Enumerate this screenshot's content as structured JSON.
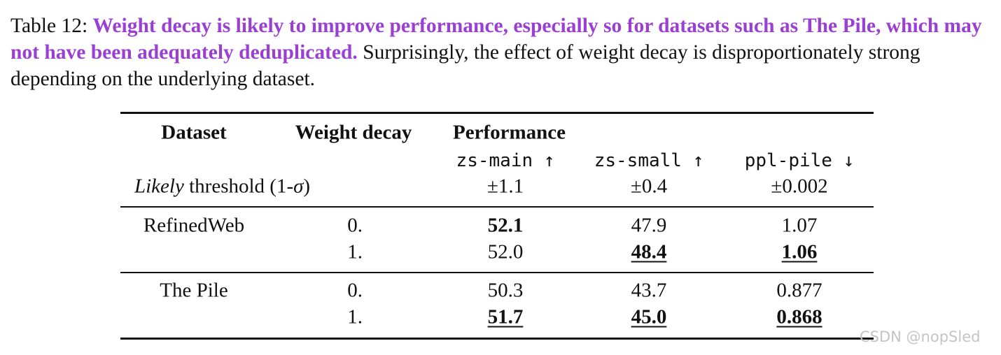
{
  "caption": {
    "label": "Table 12:",
    "emphasis": "Weight decay is likely to improve performance, especially so for datasets such as The Pile, which may not have been adequately deduplicated.",
    "rest": "Surprisingly, the effect of weight decay is disproportionately strong depending on the underlying dataset."
  },
  "table": {
    "header": {
      "dataset": "Dataset",
      "weight_decay": "Weight decay",
      "performance": "Performance",
      "metrics": [
        "zs-main ↑",
        "zs-small ↑",
        "ppl-pile ↓"
      ]
    },
    "threshold": {
      "italic": "Likely",
      "text": "threshold (1-",
      "sigma": "σ",
      "close": ")",
      "values": [
        "±1.1",
        "±0.4",
        "±0.002"
      ]
    },
    "groups": [
      {
        "dataset": "RefinedWeb",
        "rows": [
          {
            "weight_decay": "0.",
            "cells": [
              {
                "text": "52.1",
                "bold": true,
                "underline": false
              },
              {
                "text": "47.9",
                "bold": false,
                "underline": false
              },
              {
                "text": "1.07",
                "bold": false,
                "underline": false
              }
            ]
          },
          {
            "weight_decay": "1.",
            "cells": [
              {
                "text": "52.0",
                "bold": false,
                "underline": false
              },
              {
                "text": "48.4",
                "bold": true,
                "underline": true
              },
              {
                "text": "1.06",
                "bold": true,
                "underline": true
              }
            ]
          }
        ]
      },
      {
        "dataset": "The Pile",
        "rows": [
          {
            "weight_decay": "0.",
            "cells": [
              {
                "text": "50.3",
                "bold": false,
                "underline": false
              },
              {
                "text": "43.7",
                "bold": false,
                "underline": false
              },
              {
                "text": "0.877",
                "bold": false,
                "underline": false
              }
            ]
          },
          {
            "weight_decay": "1.",
            "cells": [
              {
                "text": "51.7",
                "bold": true,
                "underline": true
              },
              {
                "text": "45.0",
                "bold": true,
                "underline": true
              },
              {
                "text": "0.868",
                "bold": true,
                "underline": true
              }
            ]
          }
        ]
      }
    ]
  },
  "watermark": "CSDN @nopSled"
}
